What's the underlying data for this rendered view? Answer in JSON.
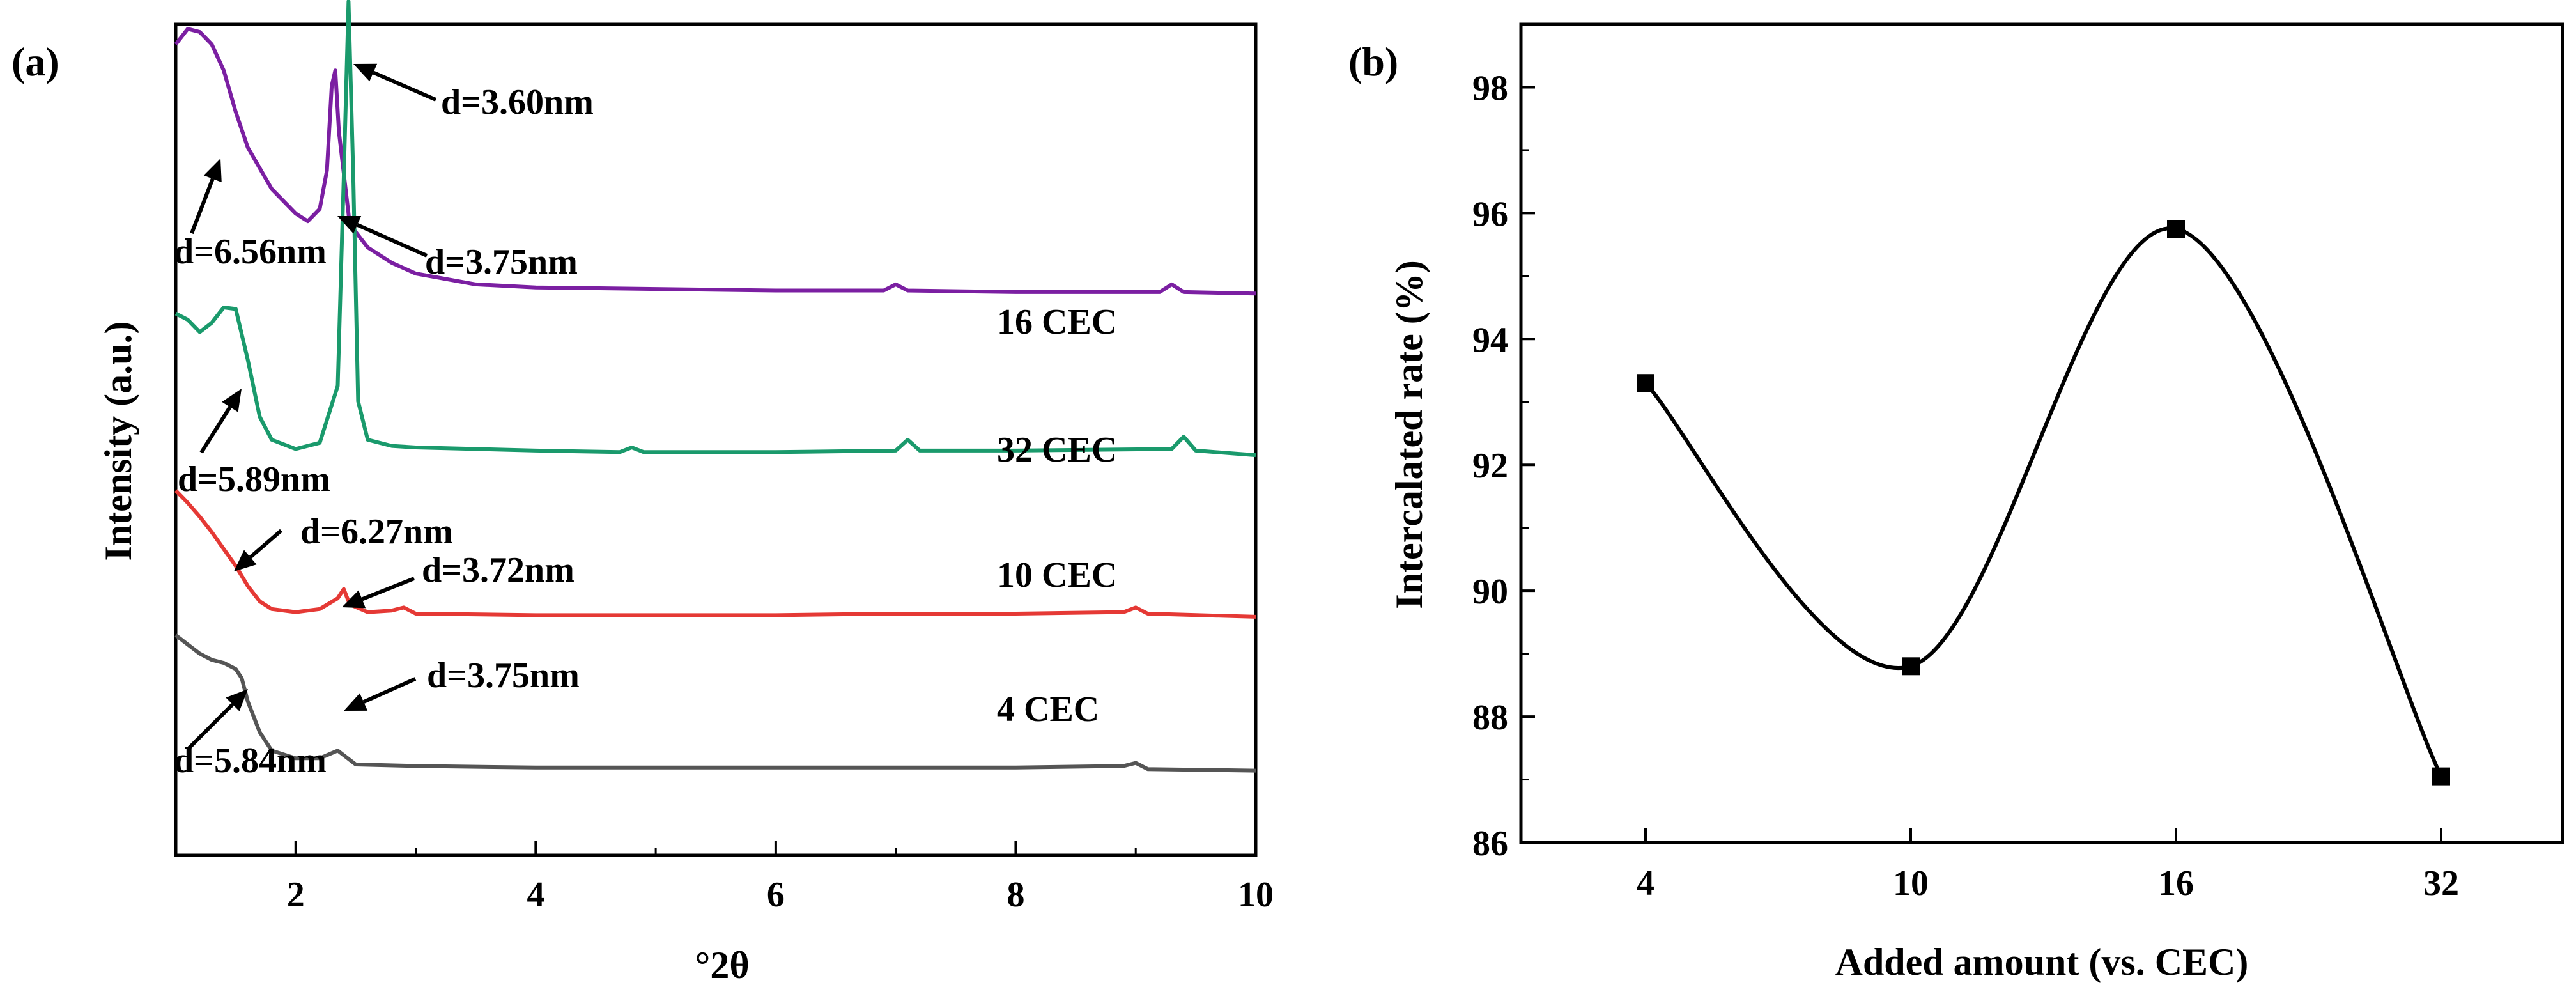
{
  "chart_data": [
    {
      "panel": "(a)",
      "type": "line",
      "xlabel": "°2θ",
      "ylabel": "Intensity (a.u.)",
      "xlim": [
        1,
        10
      ],
      "xticks": [
        2,
        4,
        6,
        8,
        10
      ],
      "yticks_shown": false,
      "series": [
        {
          "name": "16 CEC",
          "color": "#7b1fa2",
          "offset": 3.35,
          "points": [
            [
              1.0,
              1.62
            ],
            [
              1.1,
              1.72
            ],
            [
              1.2,
              1.7
            ],
            [
              1.3,
              1.62
            ],
            [
              1.4,
              1.45
            ],
            [
              1.5,
              1.18
            ],
            [
              1.6,
              0.95
            ],
            [
              1.8,
              0.68
            ],
            [
              2.0,
              0.52
            ],
            [
              2.1,
              0.47
            ],
            [
              2.2,
              0.55
            ],
            [
              2.26,
              0.8
            ],
            [
              2.3,
              1.35
            ],
            [
              2.33,
              1.45
            ],
            [
              2.36,
              1.05
            ],
            [
              2.45,
              0.45
            ],
            [
              2.6,
              0.3
            ],
            [
              2.8,
              0.2
            ],
            [
              3.0,
              0.13
            ],
            [
              3.5,
              0.06
            ],
            [
              4.0,
              0.04
            ],
            [
              5.0,
              0.03
            ],
            [
              6.0,
              0.02
            ],
            [
              6.9,
              0.02
            ],
            [
              7.0,
              0.06
            ],
            [
              7.1,
              0.02
            ],
            [
              8.0,
              0.01
            ],
            [
              9.2,
              0.01
            ],
            [
              9.3,
              0.06
            ],
            [
              9.4,
              0.01
            ],
            [
              10.0,
              0.0
            ]
          ]
        },
        {
          "name": "32 CEC",
          "color": "#1a9a6c",
          "offset": 2.3,
          "points": [
            [
              1.0,
              0.92
            ],
            [
              1.1,
              0.88
            ],
            [
              1.2,
              0.8
            ],
            [
              1.3,
              0.86
            ],
            [
              1.4,
              0.96
            ],
            [
              1.5,
              0.95
            ],
            [
              1.6,
              0.62
            ],
            [
              1.7,
              0.25
            ],
            [
              1.8,
              0.1
            ],
            [
              2.0,
              0.04
            ],
            [
              2.2,
              0.08
            ],
            [
              2.35,
              0.45
            ],
            [
              2.4,
              1.8
            ],
            [
              2.44,
              2.95
            ],
            [
              2.48,
              1.8
            ],
            [
              2.52,
              0.35
            ],
            [
              2.6,
              0.1
            ],
            [
              2.8,
              0.06
            ],
            [
              3.0,
              0.05
            ],
            [
              4.0,
              0.03
            ],
            [
              4.7,
              0.02
            ],
            [
              4.8,
              0.05
            ],
            [
              4.9,
              0.02
            ],
            [
              6.0,
              0.02
            ],
            [
              7.0,
              0.03
            ],
            [
              7.1,
              0.1
            ],
            [
              7.2,
              0.03
            ],
            [
              8.0,
              0.03
            ],
            [
              9.3,
              0.04
            ],
            [
              9.4,
              0.12
            ],
            [
              9.5,
              0.03
            ],
            [
              10.0,
              0.0
            ]
          ]
        },
        {
          "name": "10 CEC",
          "color": "#e53935",
          "offset": 1.25,
          "points": [
            [
              1.0,
              0.82
            ],
            [
              1.1,
              0.74
            ],
            [
              1.2,
              0.65
            ],
            [
              1.3,
              0.55
            ],
            [
              1.4,
              0.44
            ],
            [
              1.5,
              0.33
            ],
            [
              1.6,
              0.2
            ],
            [
              1.7,
              0.1
            ],
            [
              1.8,
              0.05
            ],
            [
              2.0,
              0.03
            ],
            [
              2.2,
              0.05
            ],
            [
              2.35,
              0.12
            ],
            [
              2.4,
              0.18
            ],
            [
              2.45,
              0.08
            ],
            [
              2.6,
              0.03
            ],
            [
              2.8,
              0.04
            ],
            [
              2.9,
              0.06
            ],
            [
              3.0,
              0.02
            ],
            [
              4.0,
              0.01
            ],
            [
              6.0,
              0.01
            ],
            [
              7.0,
              0.02
            ],
            [
              8.0,
              0.02
            ],
            [
              8.9,
              0.03
            ],
            [
              9.0,
              0.06
            ],
            [
              9.1,
              0.02
            ],
            [
              10.0,
              0.0
            ]
          ]
        },
        {
          "name": "4 CEC",
          "color": "#555555",
          "offset": 0.25,
          "points": [
            [
              1.0,
              0.88
            ],
            [
              1.1,
              0.82
            ],
            [
              1.2,
              0.76
            ],
            [
              1.3,
              0.72
            ],
            [
              1.4,
              0.7
            ],
            [
              1.5,
              0.66
            ],
            [
              1.55,
              0.6
            ],
            [
              1.6,
              0.45
            ],
            [
              1.7,
              0.25
            ],
            [
              1.8,
              0.13
            ],
            [
              2.0,
              0.08
            ],
            [
              2.2,
              0.08
            ],
            [
              2.35,
              0.13
            ],
            [
              2.4,
              0.1
            ],
            [
              2.5,
              0.04
            ],
            [
              3.0,
              0.03
            ],
            [
              4.0,
              0.02
            ],
            [
              6.0,
              0.02
            ],
            [
              7.0,
              0.02
            ],
            [
              8.0,
              0.02
            ],
            [
              8.9,
              0.03
            ],
            [
              9.0,
              0.05
            ],
            [
              9.1,
              0.01
            ],
            [
              10.0,
              0.0
            ]
          ]
        }
      ],
      "annotations": [
        {
          "text": "d=3.60nm",
          "series": "32 CEC"
        },
        {
          "text": "d=6.56nm",
          "series": "16 CEC"
        },
        {
          "text": "d=3.75nm",
          "series": "16 CEC"
        },
        {
          "text": "d=5.89nm",
          "series": "32 CEC"
        },
        {
          "text": "d=6.27nm",
          "series": "10 CEC"
        },
        {
          "text": "d=3.72nm",
          "series": "10 CEC"
        },
        {
          "text": "d=3.75nm",
          "series": "4 CEC"
        },
        {
          "text": "d=5.84nm",
          "series": "4 CEC"
        }
      ]
    },
    {
      "panel": "(b)",
      "type": "line",
      "xlabel": "Added amount (vs. CEC)",
      "ylabel": "Intercalated rate (%)",
      "categories": [
        "4",
        "10",
        "16",
        "32"
      ],
      "values": [
        93.3,
        88.8,
        95.75,
        87.05
      ],
      "ylim": [
        86,
        99
      ],
      "yticks": [
        86,
        88,
        90,
        92,
        94,
        96,
        98
      ],
      "marker": "square",
      "line": "smooth spline",
      "color": "#000000"
    }
  ]
}
